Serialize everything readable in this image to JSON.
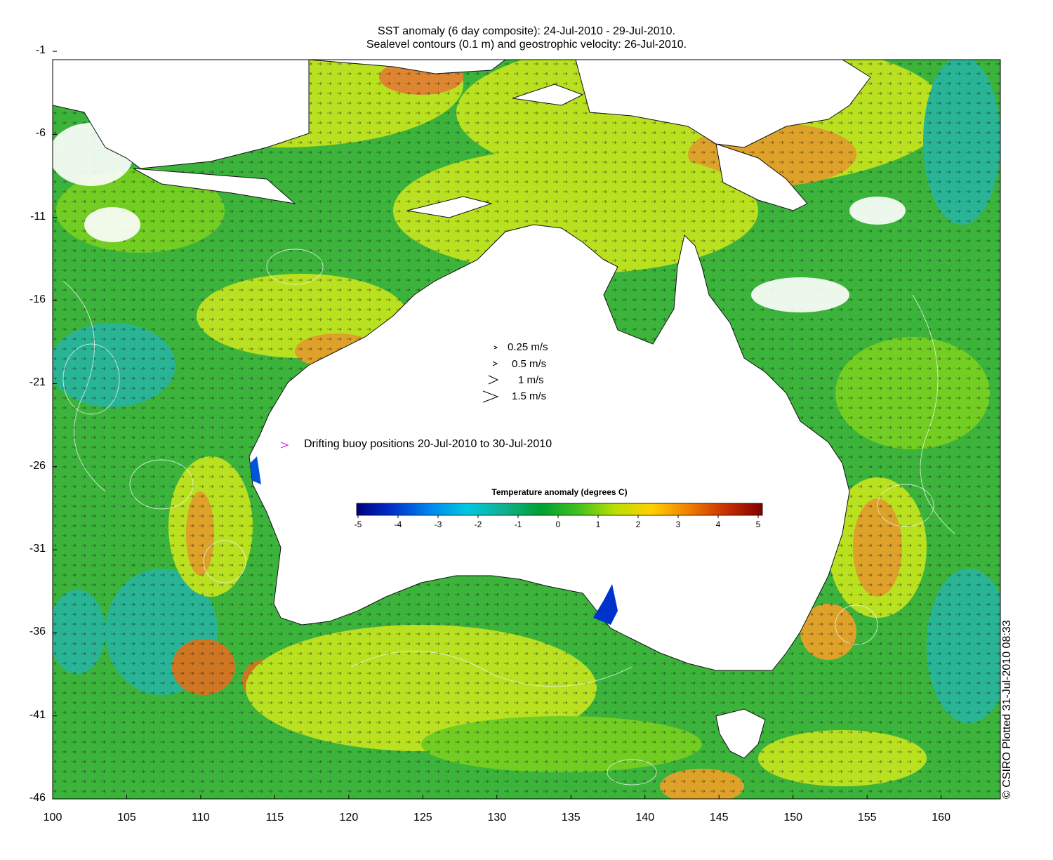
{
  "title": {
    "line1": "SST anomaly (6 day composite): 24-Jul-2010 - 29-Jul-2010.",
    "line2": "Sealevel contours (0.1 m) and geostrophic velocity: 26-Jul-2010."
  },
  "axes": {
    "x": {
      "ticks": [
        "100",
        "105",
        "110",
        "115",
        "120",
        "125",
        "130",
        "135",
        "140",
        "145",
        "150",
        "155",
        "160"
      ],
      "min": 100,
      "max": 164
    },
    "y": {
      "ticks": [
        "-1",
        "-6",
        "-11",
        "-16",
        "-21",
        "-26",
        "-31",
        "-36",
        "-41",
        "-46"
      ],
      "min": -46,
      "max": -1.5
    }
  },
  "velocity_legend": [
    {
      "label": "0.25 m/s",
      "speed": 0.25
    },
    {
      "label": "0.5 m/s",
      "speed": 0.5
    },
    {
      "label": "1 m/s",
      "speed": 1
    },
    {
      "label": "1.5 m/s",
      "speed": 1.5
    }
  ],
  "buoy_legend": {
    "symbol": ">",
    "label": "Drifting buoy positions 20-Jul-2010 to 30-Jul-2010",
    "color": "#e020e0"
  },
  "colorbar": {
    "title": "Temperature anomaly (degrees C)",
    "ticks": [
      "-5",
      "-4",
      "-3",
      "-2",
      "-1",
      "0",
      "1",
      "2",
      "3",
      "4",
      "5"
    ],
    "min": -5,
    "max": 5,
    "colors": [
      "#00007f",
      "#0033cc",
      "#0088ee",
      "#00c8e0",
      "#10b090",
      "#00a030",
      "#40c020",
      "#b8e000",
      "#ffd000",
      "#f08000",
      "#c83000",
      "#800000"
    ]
  },
  "credit": "© CSIRO Plotted 31-Jul-2010 08:33",
  "ocean_colors": {
    "green": "#3cb43c",
    "lightgreen": "#78d020",
    "yellow": "#c8e61e",
    "orange": "#f0a028",
    "cyan": "#28b4a0",
    "land": "#ffffff",
    "contour": "#e8f4e8"
  }
}
